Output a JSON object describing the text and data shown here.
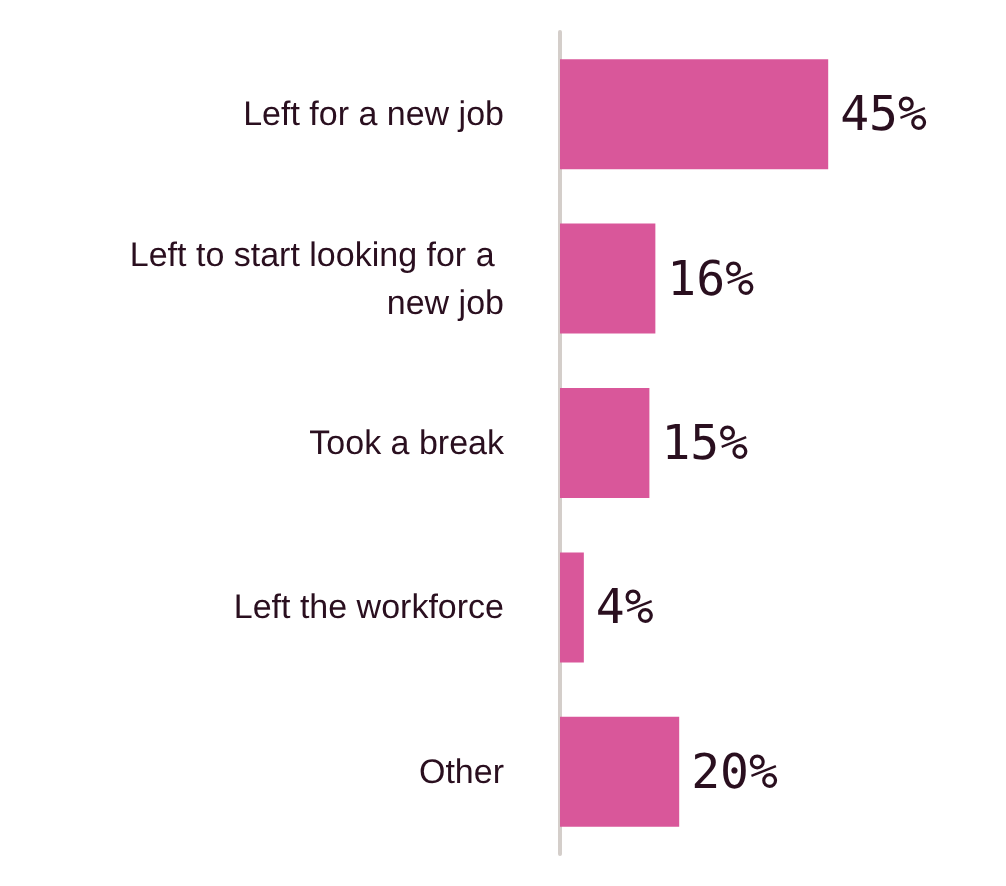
{
  "chart_data": {
    "type": "bar",
    "orientation": "horizontal",
    "categories": [
      "Left for a new job",
      "Left to start looking for a new job",
      "Took a break",
      "Left the workforce",
      "Other"
    ],
    "values": [
      45,
      16,
      15,
      4,
      20
    ],
    "value_labels": [
      "45%",
      "16%",
      "15%",
      "4%",
      "20%"
    ],
    "color": "#d9579a"
  }
}
